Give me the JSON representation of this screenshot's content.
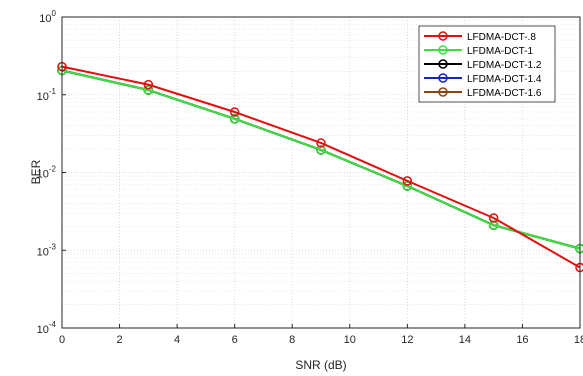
{
  "chart_data": {
    "type": "line",
    "title": "",
    "xlabel": "SNR (dB)",
    "ylabel": "BER",
    "xlim": [
      0,
      18
    ],
    "ylim": [
      0.0001,
      1
    ],
    "yscale": "log",
    "grid": true,
    "legend_position": "top-right",
    "x_ticks": [
      "0",
      "2",
      "4",
      "6",
      "8",
      "10",
      "12",
      "14",
      "16",
      "18"
    ],
    "y_ticks": [
      {
        "base": "10",
        "exp": "0"
      },
      {
        "base": "10",
        "exp": "-1"
      },
      {
        "base": "10",
        "exp": "-2"
      },
      {
        "base": "10",
        "exp": "-3"
      },
      {
        "base": "10",
        "exp": "-4"
      }
    ],
    "x": [
      0,
      3,
      6,
      9,
      12,
      15,
      18
    ],
    "series": [
      {
        "name": "LFDMA-DCT-.8",
        "color": "#e01010",
        "values": [
          0.23,
          0.135,
          0.06,
          0.024,
          0.0078,
          0.0026,
          0.0006
        ]
      },
      {
        "name": "LFDMA-DCT-1",
        "color": "#3de13d",
        "values": [
          0.205,
          0.115,
          0.049,
          0.0195,
          0.0067,
          0.0021,
          0.00105
        ]
      },
      {
        "name": "LFDMA-DCT-1.2",
        "color": "#000000",
        "values": [
          0.205,
          0.115,
          0.049,
          0.0195,
          0.0067,
          0.0021,
          0.00105
        ]
      },
      {
        "name": "LFDMA-DCT-1.4",
        "color": "#1428b4",
        "values": [
          0.205,
          0.115,
          0.049,
          0.0195,
          0.0067,
          0.0021,
          0.00105
        ]
      },
      {
        "name": "LFDMA-DCT-1.6",
        "color": "#8b4513",
        "values": [
          0.205,
          0.115,
          0.049,
          0.0195,
          0.0067,
          0.0021,
          0.00105
        ]
      }
    ]
  }
}
